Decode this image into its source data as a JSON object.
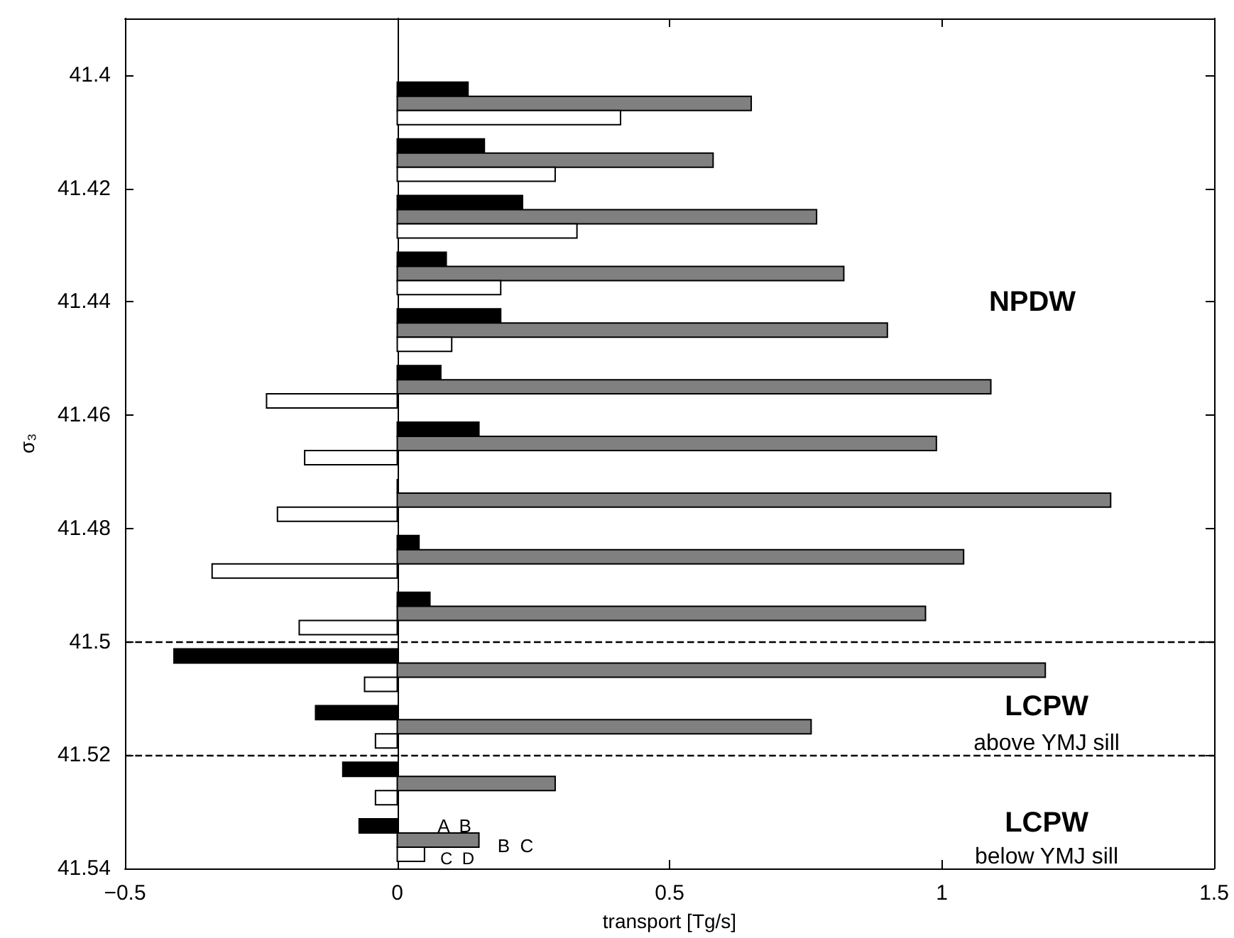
{
  "chart_data": {
    "type": "bar",
    "orientation": "horizontal",
    "x": [
      41.405,
      41.415,
      41.425,
      41.435,
      41.445,
      41.455,
      41.465,
      41.475,
      41.485,
      41.495,
      41.505,
      41.515,
      41.525,
      41.535
    ],
    "series": [
      {
        "color": "#000000",
        "values": [
          0.13,
          0.16,
          0.23,
          0.09,
          0.19,
          0.08,
          0.15,
          0.0,
          0.04,
          0.06,
          -0.41,
          -0.15,
          -0.1,
          -0.07
        ]
      },
      {
        "color": "#808080",
        "values": [
          0.65,
          0.58,
          0.77,
          0.82,
          0.9,
          1.09,
          0.99,
          1.31,
          1.04,
          0.97,
          1.19,
          0.76,
          0.29,
          0.15
        ]
      },
      {
        "color": "#ffffff",
        "values": [
          0.41,
          0.29,
          0.33,
          0.19,
          0.1,
          -0.24,
          -0.17,
          -0.22,
          -0.34,
          -0.18,
          -0.06,
          -0.04,
          -0.04,
          0.05
        ]
      }
    ],
    "xlim": [
      -0.5,
      1.5
    ],
    "xticks": [
      {
        "value": -0.5,
        "label": "−0.5"
      },
      0,
      0.5,
      1,
      1.5
    ],
    "ylim": [
      41.54,
      41.39
    ],
    "yticks": [
      41.4,
      41.42,
      41.44,
      41.46,
      41.48,
      41.5,
      41.52,
      41.54
    ],
    "xlabel": "transport [Tg/s]",
    "ylabel": "σ₃",
    "ref_lines": [
      {
        "axis": "y",
        "value": 41.5,
        "line_style": "dashed",
        "color": "#000000"
      },
      {
        "axis": "y",
        "value": 41.52,
        "line_style": "dashed",
        "color": "#000000"
      }
    ],
    "annotations": [
      "NPDW",
      "LCPW",
      "above YMJ sill",
      "LCPW",
      "below YMJ sill",
      "A  B",
      "B  C",
      "C  D"
    ],
    "grid": false
  }
}
